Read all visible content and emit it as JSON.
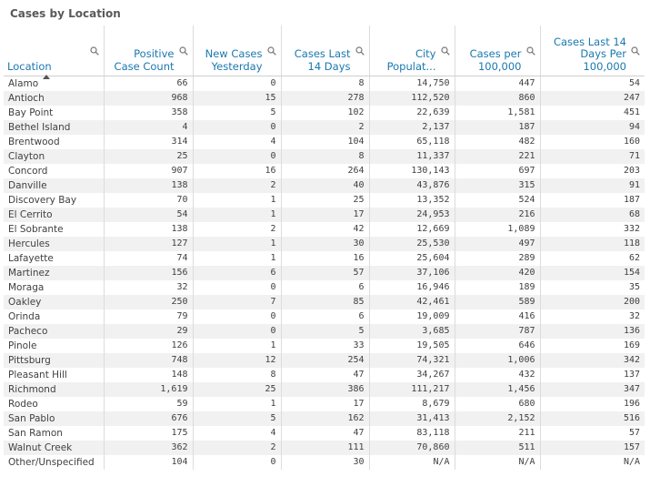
{
  "title": "Cases by Location",
  "columns": [
    "Location",
    "Positive Case Count",
    "New Cases Yesterday",
    "Cases Last 14 Days",
    "City Populat...",
    "Cases per 100,000",
    "Cases Last 14 Days Per 100,000"
  ],
  "rows": [
    [
      "Alamo",
      "66",
      "0",
      "8",
      "14,750",
      "447",
      "54"
    ],
    [
      "Antioch",
      "968",
      "15",
      "278",
      "112,520",
      "860",
      "247"
    ],
    [
      "Bay Point",
      "358",
      "5",
      "102",
      "22,639",
      "1,581",
      "451"
    ],
    [
      "Bethel Island",
      "4",
      "0",
      "2",
      "2,137",
      "187",
      "94"
    ],
    [
      "Brentwood",
      "314",
      "4",
      "104",
      "65,118",
      "482",
      "160"
    ],
    [
      "Clayton",
      "25",
      "0",
      "8",
      "11,337",
      "221",
      "71"
    ],
    [
      "Concord",
      "907",
      "16",
      "264",
      "130,143",
      "697",
      "203"
    ],
    [
      "Danville",
      "138",
      "2",
      "40",
      "43,876",
      "315",
      "91"
    ],
    [
      "Discovery Bay",
      "70",
      "1",
      "25",
      "13,352",
      "524",
      "187"
    ],
    [
      "El Cerrito",
      "54",
      "1",
      "17",
      "24,953",
      "216",
      "68"
    ],
    [
      "El Sobrante",
      "138",
      "2",
      "42",
      "12,669",
      "1,089",
      "332"
    ],
    [
      "Hercules",
      "127",
      "1",
      "30",
      "25,530",
      "497",
      "118"
    ],
    [
      "Lafayette",
      "74",
      "1",
      "16",
      "25,604",
      "289",
      "62"
    ],
    [
      "Martinez",
      "156",
      "6",
      "57",
      "37,106",
      "420",
      "154"
    ],
    [
      "Moraga",
      "32",
      "0",
      "6",
      "16,946",
      "189",
      "35"
    ],
    [
      "Oakley",
      "250",
      "7",
      "85",
      "42,461",
      "589",
      "200"
    ],
    [
      "Orinda",
      "79",
      "0",
      "6",
      "19,009",
      "416",
      "32"
    ],
    [
      "Pacheco",
      "29",
      "0",
      "5",
      "3,685",
      "787",
      "136"
    ],
    [
      "Pinole",
      "126",
      "1",
      "33",
      "19,505",
      "646",
      "169"
    ],
    [
      "Pittsburg",
      "748",
      "12",
      "254",
      "74,321",
      "1,006",
      "342"
    ],
    [
      "Pleasant Hill",
      "148",
      "8",
      "47",
      "34,267",
      "432",
      "137"
    ],
    [
      "Richmond",
      "1,619",
      "25",
      "386",
      "111,217",
      "1,456",
      "347"
    ],
    [
      "Rodeo",
      "59",
      "1",
      "17",
      "8,679",
      "680",
      "196"
    ],
    [
      "San Pablo",
      "676",
      "5",
      "162",
      "31,413",
      "2,152",
      "516"
    ],
    [
      "San Ramon",
      "175",
      "4",
      "47",
      "83,118",
      "211",
      "57"
    ],
    [
      "Walnut Creek",
      "362",
      "2",
      "111",
      "70,860",
      "511",
      "157"
    ],
    [
      "Other/Unspecified",
      "104",
      "0",
      "30",
      "N/A",
      "N/A",
      "N/A"
    ]
  ]
}
